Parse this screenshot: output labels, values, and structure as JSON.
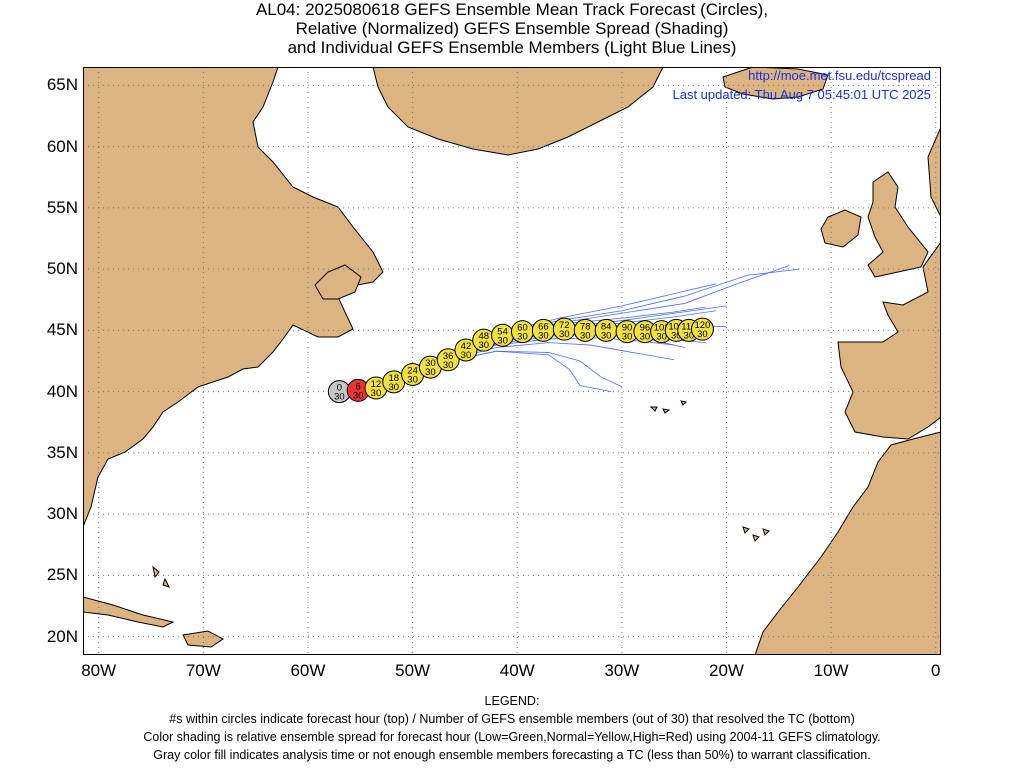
{
  "title": {
    "line1": "AL04: 2025080618 GEFS Ensemble Mean Track Forecast (Circles),",
    "line2": "Relative (Normalized) GEFS Ensemble Spread (Shading)",
    "line3": "and Individual GEFS Ensemble Members (Light Blue Lines)"
  },
  "info": {
    "url": "http://moe.met.fsu.edu/tcspread",
    "updated": "Last updated: Thu Aug 7 05:45:01 UTC 2025"
  },
  "axes": {
    "lon_range": [
      -81.5,
      0.5
    ],
    "lat_range": [
      18.5,
      66.5
    ],
    "lat_ticks": [
      "65N",
      "60N",
      "55N",
      "50N",
      "45N",
      "40N",
      "35N",
      "30N",
      "25N",
      "20N"
    ],
    "lon_ticks": [
      "80W",
      "70W",
      "60W",
      "50W",
      "40W",
      "30W",
      "20W",
      "10W",
      "0"
    ],
    "grid": "dotted"
  },
  "legend": {
    "heading": "LEGEND:",
    "line1": "#s within circles indicate forecast hour (top) / Number of GEFS ensemble members (out of 30) that resolved the TC (bottom)",
    "line2": "Color shading is relative ensemble spread for forecast hour (Low=Green,Normal=Yellow,High=Red) using 2004-11 GEFS climatology.",
    "line3": "Gray color fill indicates analysis time or not enough ensemble members forecasting a TC (less than 50%) to warrant classification."
  },
  "colors": {
    "land": "#dcb482",
    "ocean": "#ffffff",
    "members": "#4b6cff",
    "spread_normal": "#f0e040",
    "spread_high": "#ee3333",
    "analysis": "#c8c8c8"
  },
  "chart_data": {
    "type": "map-track",
    "track": [
      {
        "hour": "0",
        "members": "30",
        "lon": -57.0,
        "lat": 40.0,
        "spread": "gray"
      },
      {
        "hour": "6",
        "members": "30",
        "lon": -55.2,
        "lat": 40.1,
        "spread": "red"
      },
      {
        "hour": "12",
        "members": "30",
        "lon": -53.5,
        "lat": 40.3,
        "spread": "yellow"
      },
      {
        "hour": "18",
        "members": "30",
        "lon": -51.8,
        "lat": 40.8,
        "spread": "yellow"
      },
      {
        "hour": "24",
        "members": "30",
        "lon": -50.0,
        "lat": 41.4,
        "spread": "yellow"
      },
      {
        "hour": "30",
        "members": "30",
        "lon": -48.3,
        "lat": 42.0,
        "spread": "yellow"
      },
      {
        "hour": "36",
        "members": "30",
        "lon": -46.6,
        "lat": 42.6,
        "spread": "yellow"
      },
      {
        "hour": "42",
        "members": "30",
        "lon": -44.9,
        "lat": 43.4,
        "spread": "yellow"
      },
      {
        "hour": "48",
        "members": "30",
        "lon": -43.2,
        "lat": 44.2,
        "spread": "yellow"
      },
      {
        "hour": "54",
        "members": "30",
        "lon": -41.4,
        "lat": 44.6,
        "spread": "yellow"
      },
      {
        "hour": "60",
        "members": "30",
        "lon": -39.5,
        "lat": 44.9,
        "spread": "yellow"
      },
      {
        "hour": "66",
        "members": "30",
        "lon": -37.5,
        "lat": 45.0,
        "spread": "yellow"
      },
      {
        "hour": "72",
        "members": "30",
        "lon": -35.5,
        "lat": 45.1,
        "spread": "yellow"
      },
      {
        "hour": "78",
        "members": "30",
        "lon": -33.5,
        "lat": 45.0,
        "spread": "yellow"
      },
      {
        "hour": "84",
        "members": "30",
        "lon": -31.5,
        "lat": 45.0,
        "spread": "yellow"
      },
      {
        "hour": "90",
        "members": "30",
        "lon": -29.5,
        "lat": 44.9,
        "spread": "yellow"
      },
      {
        "hour": "96",
        "members": "30",
        "lon": -27.8,
        "lat": 44.9,
        "spread": "yellow"
      },
      {
        "hour": "102",
        "members": "30",
        "lon": -26.2,
        "lat": 44.9,
        "spread": "yellow"
      },
      {
        "hour": "108",
        "members": "30",
        "lon": -24.8,
        "lat": 45.0,
        "spread": "yellow"
      },
      {
        "hour": "114",
        "members": "30",
        "lon": -23.6,
        "lat": 45.0,
        "spread": "yellow"
      },
      {
        "hour": "120",
        "members": "30",
        "lon": -22.3,
        "lat": 45.1,
        "spread": "yellow"
      }
    ],
    "members": [
      [
        [
          -57,
          40
        ],
        [
          -52,
          41
        ],
        [
          -47,
          43
        ],
        [
          -42,
          44.5
        ],
        [
          -36,
          45.6
        ],
        [
          -30,
          46.4
        ],
        [
          -24,
          47.2
        ],
        [
          -19,
          48.8
        ],
        [
          -14,
          50.3
        ]
      ],
      [
        [
          -57,
          40
        ],
        [
          -52,
          41
        ],
        [
          -47,
          43
        ],
        [
          -42,
          44.6
        ],
        [
          -36,
          45.8
        ],
        [
          -30,
          46.6
        ],
        [
          -24,
          47.8
        ],
        [
          -18,
          49.5
        ],
        [
          -13,
          50.0
        ]
      ],
      [
        [
          -57,
          40
        ],
        [
          -52,
          41
        ],
        [
          -47,
          42.8
        ],
        [
          -42,
          44.4
        ],
        [
          -36,
          45.2
        ],
        [
          -30,
          45.8
        ],
        [
          -25,
          46.4
        ],
        [
          -20,
          47.0
        ]
      ],
      [
        [
          -57,
          40
        ],
        [
          -52,
          41
        ],
        [
          -47,
          42.9
        ],
        [
          -42,
          44.3
        ],
        [
          -36,
          45.1
        ],
        [
          -30,
          45.6
        ],
        [
          -25,
          46.1
        ],
        [
          -21,
          46.6
        ]
      ],
      [
        [
          -57,
          40
        ],
        [
          -52,
          41
        ],
        [
          -47,
          42.7
        ],
        [
          -42,
          44.1
        ],
        [
          -36,
          44.8
        ],
        [
          -30,
          45.2
        ],
        [
          -24,
          45.4
        ],
        [
          -20,
          45.3
        ]
      ],
      [
        [
          -57,
          40
        ],
        [
          -52,
          41
        ],
        [
          -47,
          42.6
        ],
        [
          -42,
          43.9
        ],
        [
          -36,
          44.6
        ],
        [
          -31,
          44.7
        ],
        [
          -27,
          44.4
        ],
        [
          -22,
          44.0
        ]
      ],
      [
        [
          -57,
          40
        ],
        [
          -52,
          41
        ],
        [
          -47,
          42.5
        ],
        [
          -42,
          43.6
        ],
        [
          -37,
          44.0
        ],
        [
          -33,
          43.8
        ],
        [
          -29,
          43.2
        ],
        [
          -25,
          42.6
        ]
      ],
      [
        [
          -57,
          40
        ],
        [
          -52,
          41
        ],
        [
          -47,
          42.4
        ],
        [
          -42,
          43.3
        ],
        [
          -37,
          43.2
        ],
        [
          -34,
          42.5
        ],
        [
          -32,
          41.2
        ],
        [
          -30,
          40.4
        ]
      ],
      [
        [
          -57,
          40
        ],
        [
          -52,
          41
        ],
        [
          -47,
          42.4
        ],
        [
          -42,
          43.3
        ],
        [
          -37,
          43.0
        ],
        [
          -35,
          41.8
        ],
        [
          -34,
          40.5
        ],
        [
          -31,
          40.0
        ]
      ],
      [
        [
          -57,
          40
        ],
        [
          -52,
          41
        ],
        [
          -47,
          42.6
        ],
        [
          -42,
          44.0
        ],
        [
          -36,
          44.8
        ],
        [
          -30,
          44.8
        ],
        [
          -27,
          44.2
        ],
        [
          -24,
          43.6
        ]
      ],
      [
        [
          -57,
          40
        ],
        [
          -52,
          41
        ],
        [
          -47,
          42.7
        ],
        [
          -42,
          44.2
        ],
        [
          -36,
          45.0
        ],
        [
          -31,
          45.3
        ],
        [
          -26,
          45.5
        ],
        [
          -23,
          45.8
        ]
      ],
      [
        [
          -57,
          40
        ],
        [
          -52,
          41
        ],
        [
          -47,
          42.8
        ],
        [
          -42,
          44.5
        ],
        [
          -36,
          45.5
        ],
        [
          -30,
          46.0
        ],
        [
          -25,
          46.5
        ],
        [
          -22,
          46.9
        ]
      ],
      [
        [
          -57,
          40
        ],
        [
          -52,
          41
        ],
        [
          -47,
          42.6
        ],
        [
          -42,
          43.8
        ],
        [
          -37,
          44.3
        ],
        [
          -32,
          44.4
        ],
        [
          -28,
          44.1
        ],
        [
          -25,
          43.8
        ]
      ],
      [
        [
          -57,
          40
        ],
        [
          -52,
          41
        ],
        [
          -47,
          42.9
        ],
        [
          -42,
          44.7
        ],
        [
          -36,
          46.0
        ],
        [
          -30,
          47.0
        ],
        [
          -25,
          48.0
        ],
        [
          -21,
          48.8
        ]
      ]
    ]
  }
}
